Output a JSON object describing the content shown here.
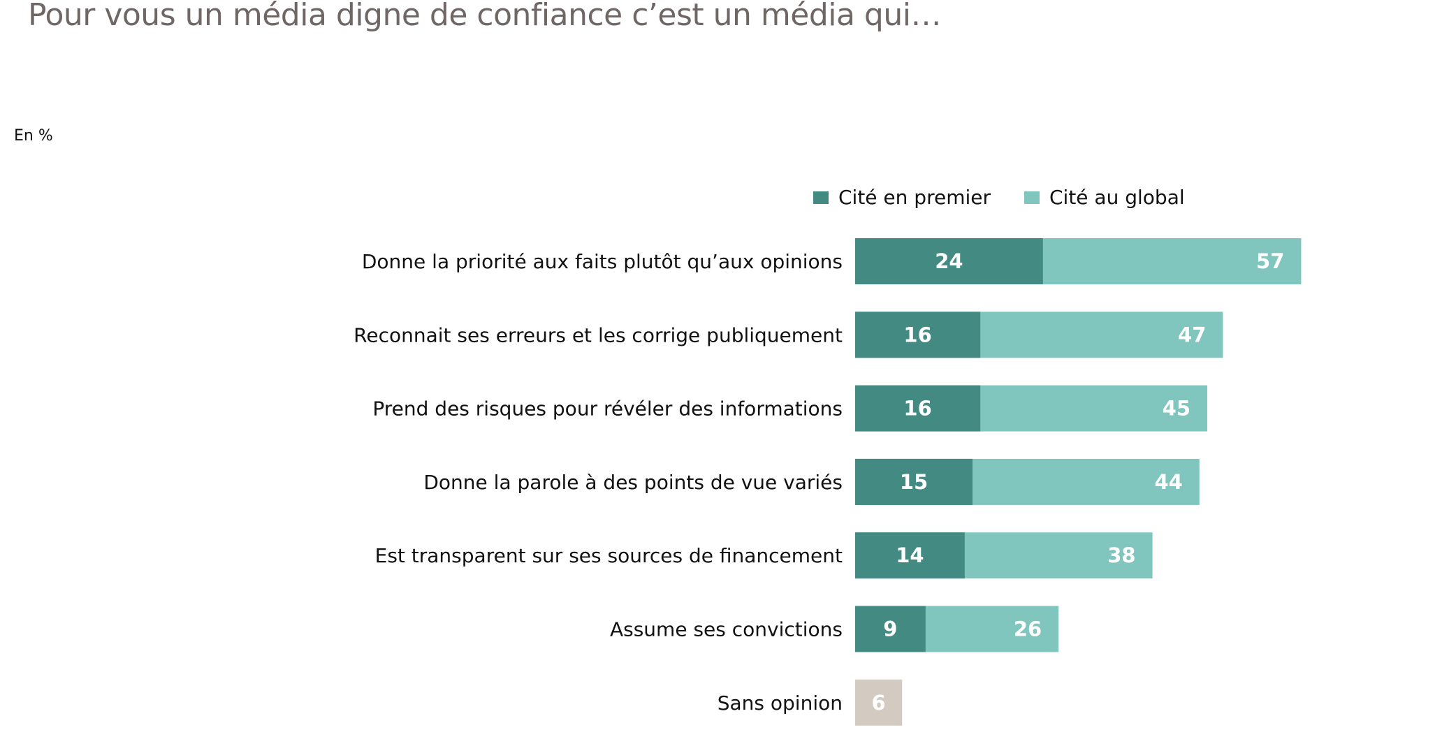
{
  "title": "Pour vous un média digne de confiance c’est un média qui…",
  "unit_label": "En %",
  "colors": {
    "first": "#428a82",
    "global": "#80c6bf",
    "no_opinion": "#d3cbc1",
    "title": "#6e6766"
  },
  "chart_data": {
    "type": "bar",
    "orientation": "horizontal",
    "title": "Pour vous un média digne de confiance c’est un média qui…",
    "xlabel": "",
    "ylabel": "En %",
    "legend_position": "top-right",
    "grid": false,
    "xlim": [
      0,
      57
    ],
    "categories": [
      "Donne la priorité aux faits plutôt qu’aux opinions",
      "Reconnait ses erreurs et les corrige publiquement",
      "Prend des risques pour révéler des informations",
      "Donne la parole à des points de vue variés",
      "Est transparent sur ses sources de financement",
      "Assume ses convictions",
      "Sans opinion"
    ],
    "series": [
      {
        "name": "Cité en premier",
        "values": [
          24,
          16,
          16,
          15,
          14,
          9,
          null
        ]
      },
      {
        "name": "Cité au global",
        "values": [
          57,
          47,
          45,
          44,
          38,
          26,
          null
        ]
      },
      {
        "name": "Sans opinion",
        "values": [
          null,
          null,
          null,
          null,
          null,
          null,
          6
        ]
      }
    ]
  },
  "legend": [
    {
      "label": "Cité en premier"
    },
    {
      "label": "Cité au global"
    }
  ]
}
